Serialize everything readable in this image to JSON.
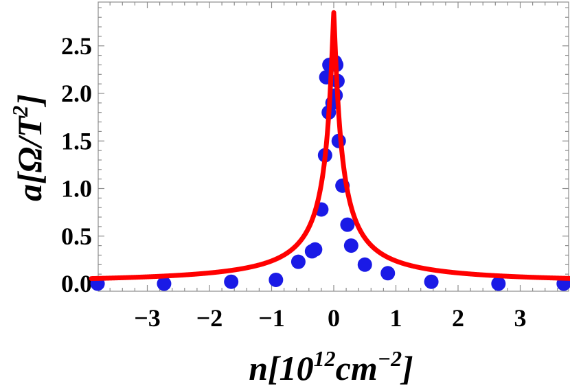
{
  "chart_data": {
    "type": "scatter",
    "title": "",
    "xlabel": {
      "prefix": "n[10",
      "sup1": "12",
      "mid": "cm",
      "sup2": "−2",
      "suffix": "]"
    },
    "ylabel": {
      "prefix": "a[Ω/T",
      "sup": "2",
      "suffix": "]"
    },
    "xlim": [
      -3.9,
      3.9
    ],
    "ylim": [
      0,
      2.95
    ],
    "x_ticks": [
      -3,
      -2,
      -1,
      0,
      1,
      2,
      3
    ],
    "x_tick_labels": [
      "−3",
      "−2",
      "−1",
      "0",
      "1",
      "2",
      "3"
    ],
    "y_ticks": [
      0,
      0.5,
      1.0,
      1.5,
      2.0,
      2.5
    ],
    "y_tick_labels": [
      "0.0",
      "0.5",
      "1.0",
      "1.5",
      "2.0",
      "2.5"
    ],
    "grid": false,
    "series": [
      {
        "kind": "points",
        "color": "#1a1ae6",
        "points": [
          [
            -3.8,
            0.0
          ],
          [
            -2.73,
            0.0
          ],
          [
            -1.65,
            0.02
          ],
          [
            -0.93,
            0.04
          ],
          [
            -0.57,
            0.23
          ],
          [
            -0.35,
            0.34
          ],
          [
            -0.3,
            0.36
          ],
          [
            -0.2,
            0.78
          ],
          [
            -0.14,
            1.35
          ],
          [
            -0.08,
            1.8
          ],
          [
            -0.12,
            2.17
          ],
          [
            -0.07,
            2.3
          ],
          [
            -0.02,
            1.9
          ],
          [
            0.02,
            2.33
          ],
          [
            0.04,
            2.3
          ],
          [
            0.06,
            2.13
          ],
          [
            0.03,
            1.98
          ],
          [
            0.08,
            1.5
          ],
          [
            0.14,
            1.03
          ],
          [
            0.22,
            0.62
          ],
          [
            0.28,
            0.4
          ],
          [
            0.5,
            0.2
          ],
          [
            0.87,
            0.11
          ],
          [
            1.57,
            0.02
          ],
          [
            2.65,
            0.0
          ],
          [
            3.7,
            0.0
          ]
        ]
      },
      {
        "kind": "fit-curve",
        "color": "#ff0000",
        "peak": 2.85,
        "peak_x": 0.0
      }
    ]
  }
}
